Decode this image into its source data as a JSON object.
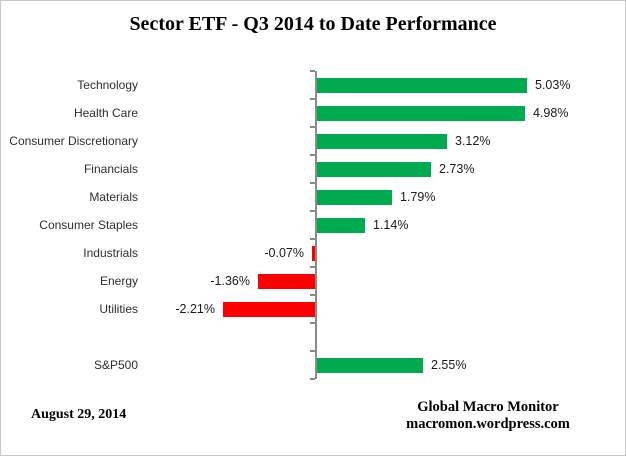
{
  "title": "Sector ETF - Q3 2014 to Date Performance",
  "footer": {
    "date": "August 29,  2014",
    "source_line1": "Global Macro Monitor",
    "source_line2": "macromon.wordpress.com"
  },
  "colors": {
    "positive_bar": "#00AB4F",
    "negative_bar": "#FF0000",
    "axis": "#8B8B8B",
    "canvas_border": "#C8C8C8",
    "category_text": "#2E2E2E",
    "value_text": "#1A1A1A",
    "title_text": "#000000"
  },
  "chart_data": {
    "type": "bar",
    "orientation": "horizontal",
    "title": "Sector ETF - Q3 2014 to Date Performance",
    "categories": [
      "Technology",
      "Health Care",
      "Consumer Discretionary",
      "Financials",
      "Materials",
      "Consumer Staples",
      "Industrials",
      "Energy",
      "Utilities",
      "S&P500"
    ],
    "values": [
      5.03,
      4.98,
      3.12,
      2.73,
      1.79,
      1.14,
      -0.07,
      -1.36,
      -2.21,
      2.55
    ],
    "value_labels": [
      "5.03%",
      "4.98%",
      "3.12%",
      "2.73%",
      "1.79%",
      "1.14%",
      "-0.07%",
      "-1.36%",
      "-2.21%",
      "2.55%"
    ],
    "spacer_row_before_last_category": true,
    "xlabel": "",
    "ylabel": "",
    "xlim": [
      -2.5,
      5.5
    ],
    "grid": false,
    "legend": false,
    "value_labels_shown": true,
    "positive_color": "#00AB4F",
    "negative_color": "#FF0000"
  }
}
